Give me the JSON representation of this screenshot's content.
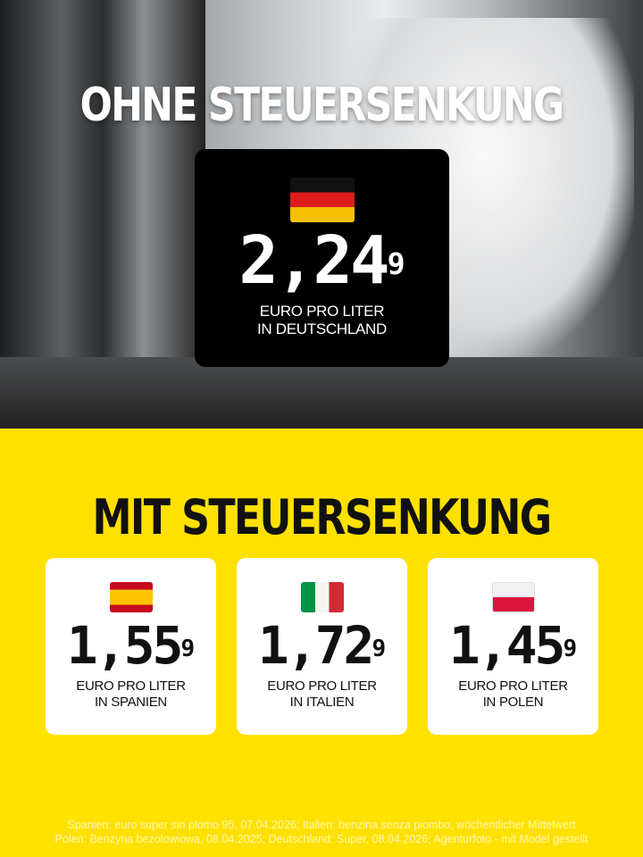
{
  "header": {
    "title": "OHNE STEUERSENKUNG"
  },
  "germany": {
    "flag": "germany-flag",
    "price_main": "2,24",
    "price_sup": "9",
    "label_line1": "EURO PRO LITER",
    "label_line2": "IN DEUTSCHLAND"
  },
  "section": {
    "title": "MIT STEUERSENKUNG"
  },
  "countries": [
    {
      "flag": "spain-flag",
      "price_main": "1,55",
      "price_sup": "9",
      "label_line1": "EURO PRO LITER",
      "label_line2": "IN SPANIEN"
    },
    {
      "flag": "italy-flag",
      "price_main": "1,72",
      "price_sup": "9",
      "label_line1": "EURO PRO LITER",
      "label_line2": "IN ITALIEN"
    },
    {
      "flag": "poland-flag",
      "price_main": "1,45",
      "price_sup": "9",
      "label_line1": "EURO PRO LITER",
      "label_line2": "IN POLEN"
    }
  ],
  "footer": {
    "line1": "Spanien: euro super sin plomo 95, 07.04.2026; Italien: benzina senza piombo, wöchentlicher Mittelwert",
    "line2": "Polen: Benzyna bezolowiowa, 08.04.2025; Deutschland: Super, 08.04.2026; Agenturfoto - mit Model gestellt"
  },
  "colors": {
    "background": "#FFE100",
    "card_dark": "#000000",
    "card_light": "#FFFFFF"
  }
}
